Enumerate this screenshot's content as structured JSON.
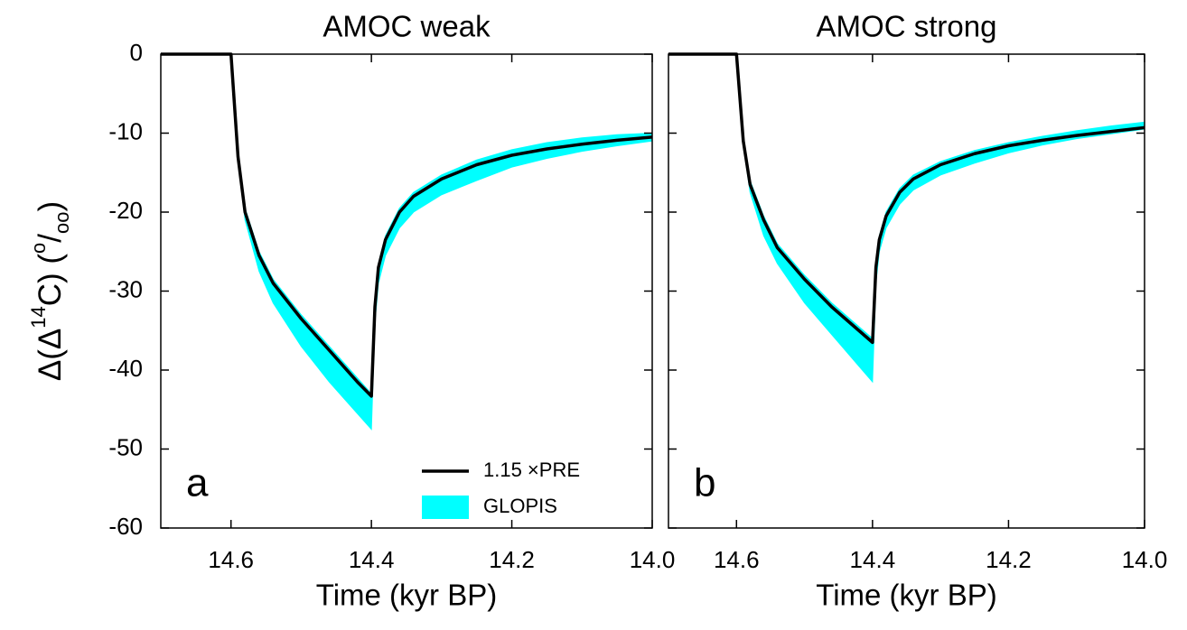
{
  "chart_data": [
    {
      "type": "line",
      "title": "AMOC weak",
      "annotation": "a",
      "xlabel": "Time (kyr BP)",
      "ylabel_parts": [
        "Δ(Δ",
        "14",
        "C) (",
        "o",
        "/",
        "oo",
        ")"
      ],
      "x": [
        14.7,
        14.6,
        14.59,
        14.58,
        14.56,
        14.54,
        14.5,
        14.46,
        14.42,
        14.4,
        14.395,
        14.39,
        14.38,
        14.36,
        14.34,
        14.3,
        14.25,
        14.2,
        14.15,
        14.1,
        14.05,
        14.0
      ],
      "series": [
        {
          "name": "1.15 ×PRE",
          "color": "#000000",
          "values": [
            0,
            0,
            -13,
            -20,
            -25.5,
            -29,
            -33.5,
            -37.5,
            -41.5,
            -43.3,
            -32,
            -27,
            -23.5,
            -20,
            -18,
            -15.8,
            -14,
            -12.8,
            -12,
            -11.4,
            -10.9,
            -10.5
          ]
        },
        {
          "name": "GLOPIS",
          "color": "#00ffff",
          "lower": [
            0,
            0,
            -13.5,
            -21,
            -27.5,
            -31.5,
            -37,
            -41.5,
            -45.5,
            -47.5,
            -34,
            -29,
            -25.5,
            -22,
            -20,
            -17.8,
            -16,
            -14.3,
            -13.2,
            -12.3,
            -11.6,
            -11
          ],
          "upper": [
            0,
            0,
            -12.5,
            -19.5,
            -25,
            -28.5,
            -33,
            -37,
            -41,
            -43,
            -31.5,
            -26.5,
            -23,
            -19.5,
            -17.5,
            -15.3,
            -13.4,
            -12.1,
            -11.2,
            -10.6,
            -10.2,
            -10
          ]
        }
      ],
      "xlim": [
        14.7,
        14.0
      ],
      "xticks": [
        14.6,
        14.4,
        14.2,
        {
          "value": 14,
          "label": "14.0"
        }
      ],
      "ylim": [
        -60,
        0
      ],
      "yticks": [
        0,
        -10,
        -20,
        -30,
        -40,
        -50,
        -60
      ],
      "ytick_labels": true,
      "legend": "lower right"
    },
    {
      "type": "line",
      "title": "AMOC strong",
      "annotation": "b",
      "xlabel": "Time (kyr BP)",
      "x": [
        14.7,
        14.6,
        14.59,
        14.58,
        14.56,
        14.54,
        14.5,
        14.46,
        14.42,
        14.4,
        14.395,
        14.39,
        14.38,
        14.36,
        14.34,
        14.3,
        14.25,
        14.2,
        14.15,
        14.1,
        14.05,
        14.0
      ],
      "series": [
        {
          "name": "1.15 ×PRE",
          "color": "#000000",
          "values": [
            0,
            0,
            -11,
            -16.5,
            -21,
            -24.5,
            -28.5,
            -32,
            -35,
            -36.5,
            -27,
            -23.5,
            -20.5,
            -17.5,
            -15.8,
            -14,
            -12.6,
            -11.6,
            -10.9,
            -10.3,
            -9.8,
            -9.3
          ]
        },
        {
          "name": "GLOPIS",
          "color": "#00ffff",
          "lower": [
            0,
            0,
            -11.5,
            -17.5,
            -23,
            -26.5,
            -31.5,
            -35.5,
            -39.5,
            -41.5,
            -29,
            -25,
            -22,
            -19,
            -17.2,
            -15.3,
            -13.8,
            -12.5,
            -11.5,
            -10.7,
            -10.1,
            -9.5
          ],
          "upper": [
            0,
            0,
            -10.8,
            -16,
            -20.5,
            -24,
            -28,
            -31.5,
            -34.5,
            -36,
            -26.5,
            -23,
            -20,
            -17,
            -15.3,
            -13.6,
            -12.2,
            -11.2,
            -10.4,
            -9.7,
            -9.1,
            -8.6
          ]
        }
      ],
      "xlim": [
        14.7,
        14.0
      ],
      "xticks": [
        14.6,
        14.4,
        14.2,
        {
          "value": 14,
          "label": "14.0"
        }
      ],
      "ylim": [
        -60,
        0
      ],
      "yticks": [
        0,
        -10,
        -20,
        -30,
        -40,
        -50,
        -60
      ],
      "ytick_labels": false
    }
  ]
}
